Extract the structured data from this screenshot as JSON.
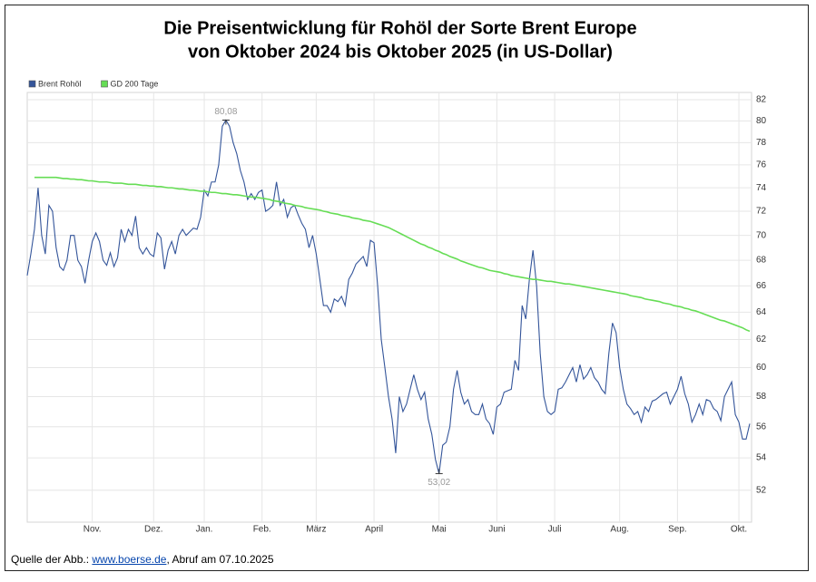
{
  "chart_data": {
    "type": "line",
    "title": "Die Preisentwicklung für Rohöl der Sorte Brent Europe",
    "subtitle": "von Oktober 2024 bis Oktober 2025 (in US-Dollar)",
    "categories": [
      null,
      null,
      null,
      null,
      null,
      null,
      null,
      null,
      null,
      null,
      null,
      null,
      null,
      null,
      null,
      null,
      null,
      null,
      "Nov.",
      null,
      null,
      null,
      null,
      null,
      null,
      null,
      null,
      null,
      null,
      null,
      null,
      null,
      null,
      null,
      null,
      "Dez.",
      null,
      null,
      null,
      null,
      null,
      null,
      null,
      null,
      null,
      null,
      null,
      null,
      null,
      "Jan.",
      null,
      null,
      null,
      null,
      null,
      null,
      null,
      null,
      null,
      null,
      null,
      null,
      null,
      null,
      null,
      "Feb.",
      null,
      null,
      null,
      null,
      null,
      null,
      null,
      null,
      null,
      null,
      null,
      null,
      null,
      null,
      "März",
      null,
      null,
      null,
      null,
      null,
      null,
      null,
      null,
      null,
      null,
      null,
      null,
      null,
      null,
      null,
      "April",
      null,
      null,
      null,
      null,
      null,
      null,
      null,
      null,
      null,
      null,
      null,
      null,
      null,
      null,
      null,
      null,
      null,
      "Mai",
      null,
      null,
      null,
      null,
      null,
      null,
      null,
      null,
      null,
      null,
      null,
      null,
      null,
      null,
      null,
      "Juni",
      null,
      null,
      null,
      null,
      null,
      null,
      null,
      null,
      null,
      null,
      null,
      null,
      null,
      null,
      null,
      "Juli",
      null,
      null,
      null,
      null,
      null,
      null,
      null,
      null,
      null,
      null,
      null,
      null,
      null,
      null,
      null,
      null,
      null,
      "Aug.",
      null,
      null,
      null,
      null,
      null,
      null,
      null,
      null,
      null,
      null,
      null,
      null,
      null,
      null,
      null,
      "Sep.",
      null,
      null,
      null,
      null,
      null,
      null,
      null,
      null,
      null,
      null,
      null,
      null,
      null,
      null,
      null,
      null,
      "Okt.",
      null,
      null,
      null
    ],
    "series": [
      {
        "name": "Brent Rohöl",
        "color": "#34559a",
        "values": [
          66.8,
          68.5,
          70.5,
          74,
          70,
          68.5,
          72.5,
          72,
          69,
          67.5,
          67.2,
          68,
          70,
          70,
          68,
          67.5,
          66.2,
          68,
          69.5,
          70.2,
          69.5,
          68,
          67.6,
          68.6,
          67.5,
          68.2,
          70.5,
          69.5,
          70.5,
          70,
          71.6,
          69,
          68.5,
          69,
          68.5,
          68.3,
          70.2,
          69.8,
          67.3,
          68.8,
          69.5,
          68.5,
          70,
          70.5,
          70,
          70.3,
          70.6,
          70.5,
          71.5,
          73.8,
          73.3,
          74.5,
          74.5,
          76,
          79.5,
          80.08,
          79.5,
          78,
          77,
          75.5,
          74.5,
          73,
          73.5,
          73,
          73.6,
          73.8,
          72,
          72.2,
          72.5,
          74.5,
          72.5,
          73,
          71.5,
          72.3,
          72.5,
          71.7,
          71,
          70.5,
          69,
          70,
          68.5,
          66.5,
          64.5,
          64.5,
          64,
          65,
          64.8,
          65.2,
          64.5,
          66.5,
          67,
          67.7,
          68,
          68.3,
          67.5,
          69.6,
          69.4,
          66,
          62,
          60,
          58,
          56.5,
          54.3,
          58,
          57,
          57.5,
          58.5,
          59.5,
          58.5,
          57.8,
          58.3,
          56.5,
          55.5,
          53.9,
          53.02,
          54.8,
          55,
          56,
          58.5,
          59.8,
          58.3,
          57.5,
          57.8,
          57,
          56.8,
          56.8,
          57.5,
          56.5,
          56.2,
          55.5,
          57.3,
          57.5,
          58.3,
          58.4,
          58.5,
          60.5,
          59.8,
          64.5,
          63.5,
          66.5,
          68.8,
          66,
          61,
          58,
          57,
          56.8,
          57,
          58.5,
          58.6,
          59,
          59.5,
          60,
          59,
          60.2,
          59.2,
          59.5,
          60,
          59.3,
          59,
          58.5,
          58.2,
          61,
          63.2,
          62.5,
          60,
          58.5,
          57.5,
          57.2,
          56.8,
          57,
          56.3,
          57.3,
          57,
          57.7,
          57.8,
          58,
          58.2,
          58.3,
          57.5,
          58,
          58.5,
          59.4,
          58.2,
          57.5,
          56.3,
          56.8,
          57.5,
          56.8,
          57.8,
          57.7,
          57.2,
          57,
          56.4,
          58,
          58.5,
          59,
          56.8,
          56.3,
          55.2,
          55.2,
          56.2
        ],
        "value_labels": [
          null,
          null,
          null,
          null,
          null,
          null,
          null,
          null,
          null,
          null,
          null,
          null,
          null,
          null,
          null,
          null,
          null,
          null,
          null,
          null,
          null,
          null,
          null,
          null,
          null,
          null,
          null,
          null,
          null,
          null,
          null,
          null,
          null,
          null,
          null,
          null,
          null,
          null,
          null,
          null,
          null,
          null,
          null,
          null,
          null,
          null,
          null,
          null,
          null,
          null,
          null,
          null,
          null,
          null,
          null,
          "80,08",
          null,
          null,
          null,
          null,
          null,
          null,
          null,
          null,
          null,
          null,
          null,
          null,
          null,
          null,
          null,
          null,
          null,
          null,
          null,
          null,
          null,
          null,
          null,
          null,
          null,
          null,
          null,
          null,
          null,
          null,
          null,
          null,
          null,
          null,
          null,
          null,
          null,
          null,
          null,
          null,
          null,
          null,
          null,
          null,
          null,
          null,
          null,
          null,
          null,
          null,
          null,
          null,
          null,
          null,
          null,
          null,
          null,
          null,
          "53,02",
          null,
          null,
          null,
          null,
          null,
          null,
          null,
          null,
          null,
          null,
          null,
          null,
          null,
          null,
          null,
          null,
          null,
          null,
          null,
          null,
          null,
          null,
          null,
          null,
          null,
          null,
          null,
          null,
          null,
          null,
          null,
          null,
          null,
          null,
          null,
          null,
          null,
          null,
          null,
          null,
          null,
          null,
          null,
          null,
          null,
          null,
          null,
          null,
          null,
          null,
          null,
          null,
          null,
          null,
          null,
          null,
          null,
          null,
          null,
          null,
          null,
          null,
          null,
          null,
          null,
          null,
          null,
          null,
          null,
          null,
          null,
          null,
          null,
          null,
          null,
          null,
          null,
          null,
          null,
          null,
          null,
          null,
          null,
          null,
          null,
          null
        ]
      },
      {
        "name": "GD 200 Tage",
        "color": "#66dd55",
        "values": [
          null,
          null,
          74.9,
          74.9,
          74.9,
          74.9,
          74.9,
          74.9,
          74.9,
          74.85,
          74.8,
          74.8,
          74.75,
          74.75,
          74.7,
          74.7,
          74.65,
          74.6,
          74.6,
          74.55,
          74.5,
          74.5,
          74.5,
          74.45,
          74.4,
          74.4,
          74.4,
          74.35,
          74.3,
          74.3,
          74.3,
          74.25,
          74.2,
          74.2,
          74.15,
          74.15,
          74.1,
          74.1,
          74.05,
          74,
          74,
          73.95,
          73.9,
          73.9,
          73.85,
          73.8,
          73.8,
          73.75,
          73.7,
          73.7,
          73.65,
          73.6,
          73.6,
          73.55,
          73.5,
          73.5,
          73.45,
          73.4,
          73.4,
          73.35,
          73.3,
          73.25,
          73.2,
          73.2,
          73.15,
          73.1,
          73.05,
          73,
          72.9,
          72.85,
          72.8,
          72.7,
          72.65,
          72.6,
          72.5,
          72.45,
          72.4,
          72.3,
          72.25,
          72.2,
          72.15,
          72.1,
          72,
          71.95,
          71.85,
          71.8,
          71.75,
          71.65,
          71.6,
          71.55,
          71.45,
          71.4,
          71.35,
          71.25,
          71.2,
          71.15,
          71.05,
          70.95,
          70.85,
          70.75,
          70.65,
          70.5,
          70.35,
          70.2,
          70.05,
          69.9,
          69.75,
          69.6,
          69.45,
          69.3,
          69.2,
          69.05,
          68.95,
          68.8,
          68.7,
          68.55,
          68.45,
          68.3,
          68.2,
          68.1,
          67.95,
          67.85,
          67.75,
          67.65,
          67.55,
          67.45,
          67.4,
          67.3,
          67.2,
          67.15,
          67.1,
          67.05,
          66.95,
          66.9,
          66.8,
          66.75,
          66.7,
          66.65,
          66.6,
          66.55,
          66.5,
          66.5,
          66.45,
          66.4,
          66.35,
          66.35,
          66.3,
          66.25,
          66.2,
          66.15,
          66.15,
          66.1,
          66.05,
          66,
          65.95,
          65.9,
          65.85,
          65.8,
          65.75,
          65.7,
          65.65,
          65.6,
          65.55,
          65.5,
          65.45,
          65.4,
          65.35,
          65.25,
          65.2,
          65.15,
          65.1,
          65,
          64.95,
          64.9,
          64.85,
          64.8,
          64.7,
          64.65,
          64.6,
          64.5,
          64.45,
          64.4,
          64.3,
          64.25,
          64.15,
          64.1,
          64,
          63.9,
          63.8,
          63.7,
          63.6,
          63.5,
          63.4,
          63.35,
          63.25,
          63.15,
          63.05,
          62.95,
          62.85,
          62.7,
          62.6
        ]
      }
    ],
    "ylim": [
      50.1,
      82.7
    ],
    "yticks": [
      52,
      54,
      56,
      58,
      60,
      62,
      64,
      66,
      68,
      70,
      72,
      74,
      76,
      78,
      80,
      82
    ],
    "log": true,
    "grid": true,
    "legend": "top-left"
  },
  "source": {
    "prefix": "Quelle der Abb.: ",
    "link": "www.boerse.de",
    "suffix": ", Abruf am 07.10.2025"
  }
}
